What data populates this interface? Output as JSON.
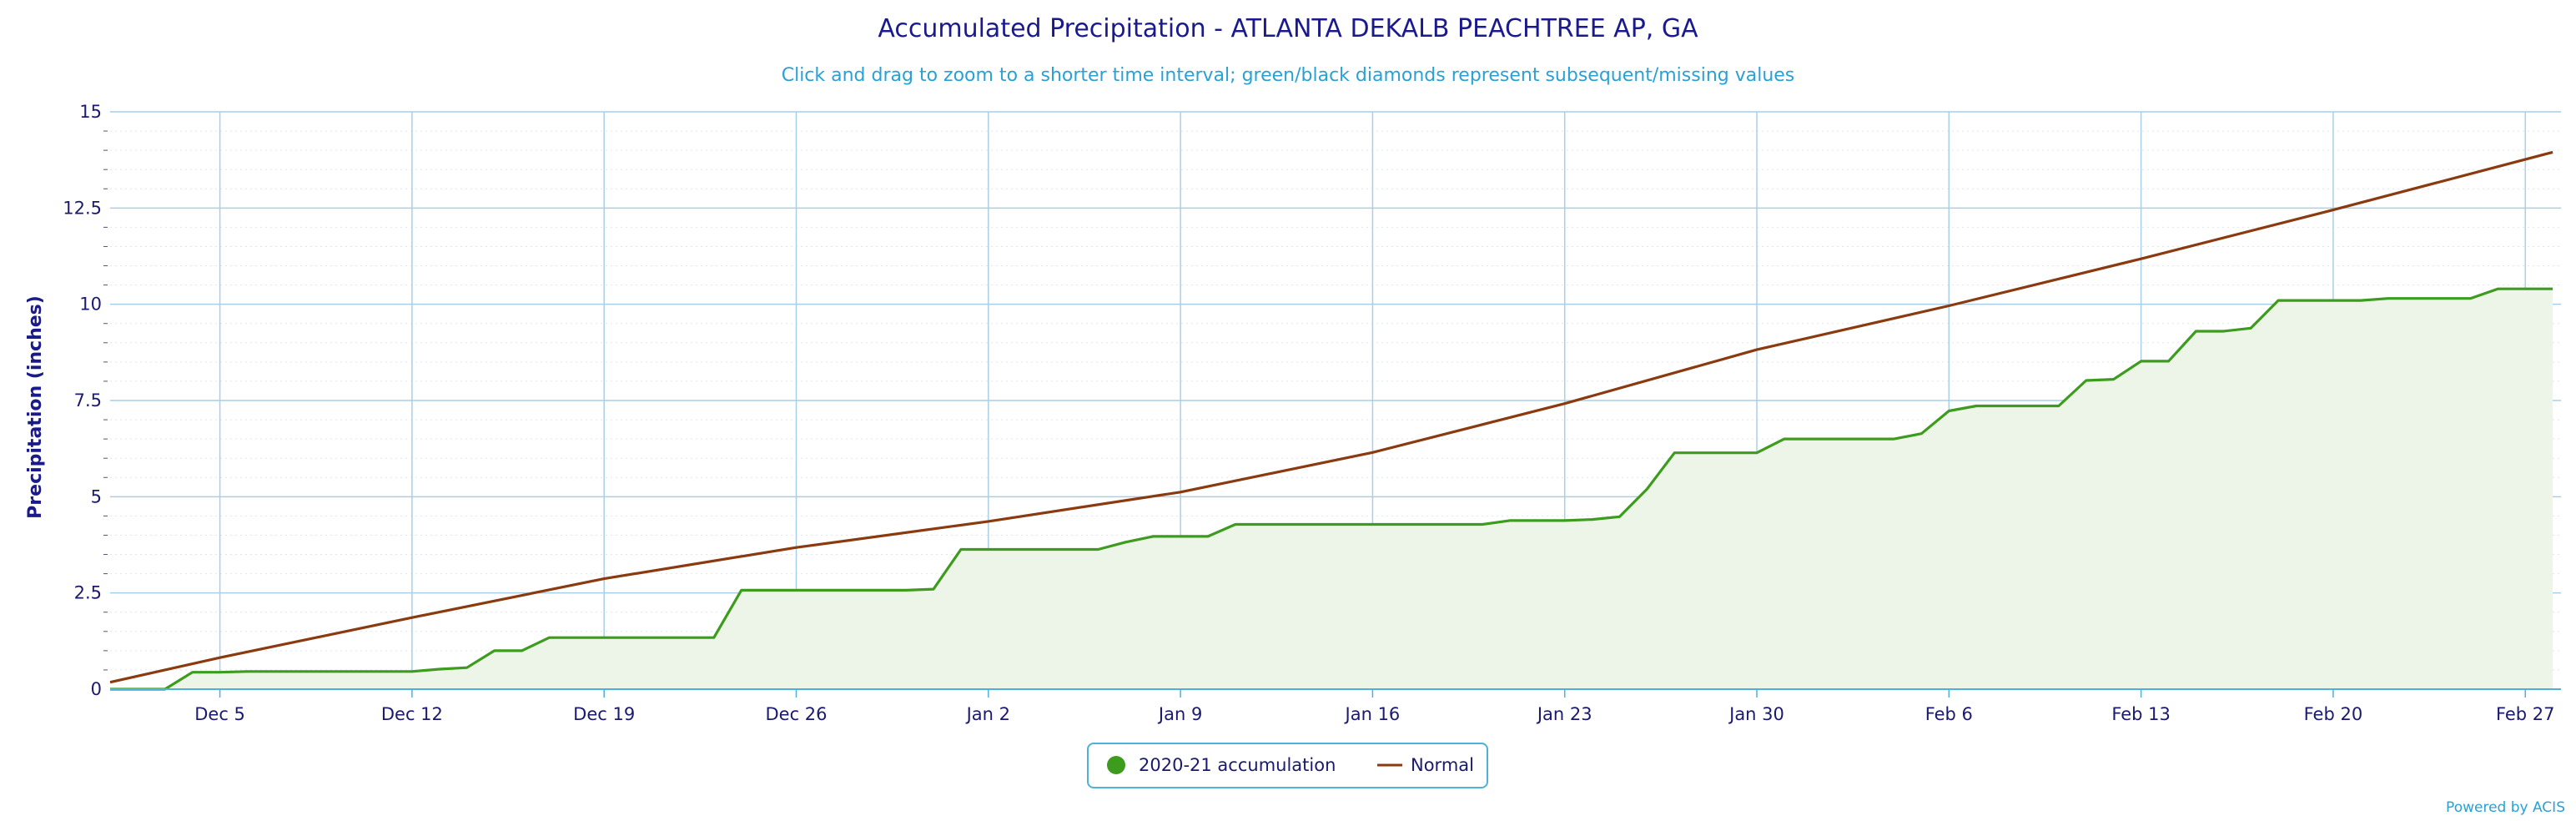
{
  "chart_data": {
    "type": "line",
    "title": "Accumulated Precipitation - ATLANTA DEKALB PEACHTREE AP, GA",
    "subtitle": "Click and drag to zoom to a shorter time interval; green/black diamonds represent subsequent/missing values",
    "ylabel": "Precipitation (inches)",
    "xlabel": "",
    "ylim": [
      0,
      15
    ],
    "yticks": [
      0,
      2.5,
      5,
      7.5,
      10,
      12.5,
      15
    ],
    "ytick_labels": [
      "0",
      "2.5",
      "5",
      "7.5",
      "10",
      "12.5",
      "15"
    ],
    "x_start": "Dec 1",
    "x_end": "Feb 28",
    "xticks": [
      {
        "label": "Dec 5",
        "day": 4
      },
      {
        "label": "Dec 12",
        "day": 11
      },
      {
        "label": "Dec 19",
        "day": 18
      },
      {
        "label": "Dec 26",
        "day": 25
      },
      {
        "label": "Jan 2",
        "day": 32
      },
      {
        "label": "Jan 9",
        "day": 39
      },
      {
        "label": "Jan 16",
        "day": 46
      },
      {
        "label": "Jan 23",
        "day": 53
      },
      {
        "label": "Jan 30",
        "day": 60
      },
      {
        "label": "Feb 6",
        "day": 67
      },
      {
        "label": "Feb 13",
        "day": 74
      },
      {
        "label": "Feb 20",
        "day": 81
      },
      {
        "label": "Feb 27",
        "day": 88
      }
    ],
    "grid": true,
    "legend_position": "bottom-center",
    "series": [
      {
        "name": "2020-21 accumulation",
        "color": "#3d9b1e",
        "fill": "#edf5e8",
        "points": [
          [
            0,
            0
          ],
          [
            1,
            0
          ],
          [
            2,
            0
          ],
          [
            3,
            0.44
          ],
          [
            4,
            0.44
          ],
          [
            5,
            0.46
          ],
          [
            6,
            0.46
          ],
          [
            7,
            0.46
          ],
          [
            8,
            0.46
          ],
          [
            9,
            0.46
          ],
          [
            10,
            0.46
          ],
          [
            11,
            0.46
          ],
          [
            12,
            0.52
          ],
          [
            13,
            0.56
          ],
          [
            14,
            1.0
          ],
          [
            15,
            1.0
          ],
          [
            16,
            1.34
          ],
          [
            17,
            1.34
          ],
          [
            18,
            1.34
          ],
          [
            19,
            1.34
          ],
          [
            20,
            1.34
          ],
          [
            21,
            1.34
          ],
          [
            22,
            1.34
          ],
          [
            23,
            2.57
          ],
          [
            24,
            2.57
          ],
          [
            25,
            2.57
          ],
          [
            26,
            2.57
          ],
          [
            27,
            2.57
          ],
          [
            28,
            2.57
          ],
          [
            29,
            2.57
          ],
          [
            30,
            2.6
          ],
          [
            31,
            3.63
          ],
          [
            32,
            3.63
          ],
          [
            33,
            3.63
          ],
          [
            34,
            3.63
          ],
          [
            35,
            3.63
          ],
          [
            36,
            3.63
          ],
          [
            37,
            3.82
          ],
          [
            38,
            3.97
          ],
          [
            39,
            3.97
          ],
          [
            40,
            3.97
          ],
          [
            41,
            4.28
          ],
          [
            42,
            4.28
          ],
          [
            43,
            4.28
          ],
          [
            44,
            4.28
          ],
          [
            45,
            4.28
          ],
          [
            46,
            4.28
          ],
          [
            47,
            4.28
          ],
          [
            48,
            4.28
          ],
          [
            49,
            4.28
          ],
          [
            50,
            4.28
          ],
          [
            51,
            4.38
          ],
          [
            52,
            4.38
          ],
          [
            53,
            4.38
          ],
          [
            54,
            4.41
          ],
          [
            55,
            4.48
          ],
          [
            56,
            5.2
          ],
          [
            57,
            6.14
          ],
          [
            58,
            6.14
          ],
          [
            59,
            6.14
          ],
          [
            60,
            6.14
          ],
          [
            61,
            6.5
          ],
          [
            62,
            6.5
          ],
          [
            63,
            6.5
          ],
          [
            64,
            6.5
          ],
          [
            65,
            6.5
          ],
          [
            66,
            6.64
          ],
          [
            67,
            7.23
          ],
          [
            68,
            7.36
          ],
          [
            69,
            7.36
          ],
          [
            70,
            7.36
          ],
          [
            71,
            7.36
          ],
          [
            72,
            8.02
          ],
          [
            73,
            8.05
          ],
          [
            74,
            8.52
          ],
          [
            75,
            8.52
          ],
          [
            76,
            9.3
          ],
          [
            77,
            9.3
          ],
          [
            78,
            9.38
          ],
          [
            79,
            10.1
          ],
          [
            80,
            10.1
          ],
          [
            81,
            10.1
          ],
          [
            82,
            10.1
          ],
          [
            83,
            10.15
          ],
          [
            84,
            10.15
          ],
          [
            85,
            10.15
          ],
          [
            86,
            10.15
          ],
          [
            87,
            10.4
          ],
          [
            88,
            10.4
          ],
          [
            89,
            10.4
          ]
        ]
      },
      {
        "name": "Normal",
        "color": "#8b3a0f",
        "points": [
          [
            0,
            0.18
          ],
          [
            4,
            0.82
          ],
          [
            11,
            1.86
          ],
          [
            18,
            2.87
          ],
          [
            25,
            3.68
          ],
          [
            32,
            4.36
          ],
          [
            39,
            5.12
          ],
          [
            46,
            6.15
          ],
          [
            53,
            7.42
          ],
          [
            60,
            8.82
          ],
          [
            67,
            9.96
          ],
          [
            74,
            11.18
          ],
          [
            81,
            12.45
          ],
          [
            89,
            13.95
          ]
        ]
      }
    ]
  },
  "credit": "Powered by ACIS"
}
